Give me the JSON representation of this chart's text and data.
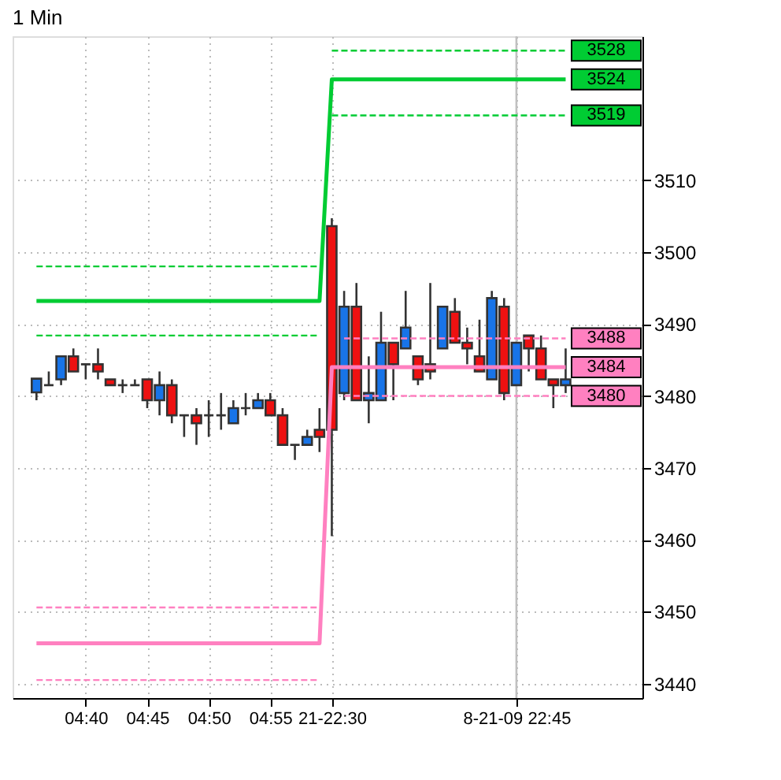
{
  "chart_data": {
    "type": "candlestick",
    "title": "1 Min",
    "categories": [
      null,
      null,
      null,
      null,
      "04:40",
      null,
      null,
      null,
      null,
      "04:45",
      null,
      null,
      null,
      null,
      "04:50",
      null,
      null,
      null,
      null,
      "04:55",
      null,
      null,
      null,
      null,
      "21-22:30",
      null,
      null,
      null,
      null,
      null,
      null,
      null,
      null,
      null,
      null,
      null,
      null,
      null,
      null,
      "8-21-09 22:45",
      null,
      null,
      null,
      null
    ],
    "ohlc": [
      [
        3480.5,
        3482.4,
        3479.4,
        3482.4
      ],
      [
        3481.5,
        3483.4,
        3481.5,
        3481.5
      ],
      [
        3482.3,
        3485.5,
        3481.5,
        3485.5
      ],
      [
        3485.5,
        3486.6,
        3483.4,
        3483.4
      ],
      [
        3484.4,
        3484.4,
        3482.3,
        3484.4
      ],
      [
        3484.4,
        3486.6,
        3482.3,
        3483.4
      ],
      [
        3482.3,
        3482.3,
        3481.5,
        3481.5
      ],
      [
        3481.5,
        3482.3,
        3480.4,
        3481.5
      ],
      [
        3481.5,
        3482.3,
        3481.5,
        3481.5
      ],
      [
        3482.3,
        3482.3,
        3478.3,
        3479.4
      ],
      [
        3479.4,
        3483.4,
        3477.3,
        3481.5
      ],
      [
        3481.5,
        3482.3,
        3476.2,
        3477.3
      ],
      [
        3477.3,
        3477.3,
        3474.3,
        3477.3
      ],
      [
        3477.3,
        3478.3,
        3473.2,
        3476.2
      ],
      [
        3477.3,
        3479.4,
        3474.3,
        3477.3
      ],
      [
        3477.3,
        3480.4,
        3475.3,
        3477.3
      ],
      [
        3476.2,
        3479.4,
        3476.2,
        3478.3
      ],
      [
        3478.3,
        3480.4,
        3477.3,
        3478.3
      ],
      [
        3478.3,
        3480.4,
        3478.3,
        3479.4
      ],
      [
        3479.4,
        3480.4,
        3477.3,
        3477.3
      ],
      [
        3477.3,
        3478.3,
        3473.2,
        3473.2
      ],
      [
        3473.2,
        3473.2,
        3471.1,
        3473.2
      ],
      [
        3473.2,
        3475.3,
        3473.2,
        3474.3
      ],
      [
        3475.3,
        3478.3,
        3472.2,
        3474.3
      ],
      [
        3503.6,
        3504.7,
        3460.5,
        3475.3
      ],
      [
        3480.4,
        3494.6,
        3479.4,
        3492.4
      ],
      [
        3492.4,
        3495.7,
        3479.4,
        3479.4
      ],
      [
        3479.4,
        3485.5,
        3476.2,
        3480.4
      ],
      [
        3479.4,
        3491.7,
        3479.4,
        3487.4
      ],
      [
        3487.4,
        3487.4,
        3479.4,
        3484.4
      ],
      [
        3486.6,
        3494.6,
        3486.6,
        3489.5
      ],
      [
        3485.5,
        3485.5,
        3481.5,
        3482.3
      ],
      [
        3484.4,
        3495.7,
        3482.3,
        3483.4
      ],
      [
        3486.6,
        3492.4,
        3486.6,
        3492.4
      ],
      [
        3491.7,
        3493.6,
        3487.4,
        3487.4
      ],
      [
        3487.4,
        3489.5,
        3484.4,
        3486.6
      ],
      [
        3485.5,
        3490.6,
        3483.4,
        3483.4
      ],
      [
        3482.3,
        3494.6,
        3482.3,
        3493.6
      ],
      [
        3492.4,
        3493.6,
        3479.4,
        3480.4
      ],
      [
        3481.5,
        3487.4,
        3481.5,
        3487.4
      ],
      [
        3488.4,
        3488.4,
        3483.4,
        3486.6
      ],
      [
        3486.6,
        3488.4,
        3482.3,
        3482.3
      ],
      [
        3482.3,
        3482.3,
        3478.3,
        3481.5
      ],
      [
        3481.5,
        3486.6,
        3480.4,
        3482.3
      ]
    ],
    "colors": [
      "#1874e8",
      "#333333",
      "#1874e8",
      "#ee1111",
      "#333333",
      "#ee1111",
      "#ee1111",
      "#333333",
      "#333333",
      "#ee1111",
      "#1874e8",
      "#ee1111",
      "#333333",
      "#ee1111",
      "#333333",
      "#333333",
      "#1874e8",
      "#333333",
      "#1874e8",
      "#ee1111",
      "#ee1111",
      "#333333",
      "#1874e8",
      "#ee1111",
      "#ee1111",
      "#1874e8",
      "#ee1111",
      "#1874e8",
      "#1874e8",
      "#ee1111",
      "#1874e8",
      "#ee1111",
      "#ee1111",
      "#1874e8",
      "#ee1111",
      "#ee1111",
      "#ee1111",
      "#1874e8",
      "#ee1111",
      "#1874e8",
      "#ee1111",
      "#ee1111",
      "#ee1111",
      "#1874e8"
    ],
    "series": [
      {
        "type": "line",
        "color": "#00cc33",
        "line_style": "solid",
        "values": [
          3493.2,
          3493.2,
          3493.2,
          3493.2,
          3493.2,
          3493.2,
          3493.2,
          3493.2,
          3493.2,
          3493.2,
          3493.2,
          3493.2,
          3493.2,
          3493.2,
          3493.2,
          3493.2,
          3493.2,
          3493.2,
          3493.2,
          3493.2,
          3493.2,
          3493.2,
          3493.2,
          3493.2,
          3524,
          3524,
          3524,
          3524,
          3524,
          3524,
          3524,
          3524,
          3524,
          3524,
          3524,
          3524,
          3524,
          3524,
          3524,
          3524,
          3524,
          3524,
          3524,
          3524
        ],
        "value_labels": [
          null,
          null,
          null,
          null,
          null,
          null,
          null,
          null,
          null,
          null,
          null,
          null,
          null,
          null,
          null,
          null,
          null,
          null,
          null,
          null,
          null,
          null,
          null,
          null,
          null,
          null,
          null,
          null,
          null,
          null,
          null,
          null,
          null,
          null,
          null,
          null,
          null,
          null,
          null,
          null,
          null,
          null,
          null,
          "3524"
        ]
      },
      {
        "type": "line",
        "color": "#00cc33",
        "line_style": "dashed",
        "values": [
          3498,
          3498,
          3498,
          3498,
          3498,
          3498,
          3498,
          3498,
          3498,
          3498,
          3498,
          3498,
          3498,
          3498,
          3498,
          3498,
          3498,
          3498,
          3498,
          3498,
          3498,
          3498,
          3498,
          3498,
          null,
          null,
          null,
          null,
          null,
          null,
          null,
          null,
          null,
          null,
          null,
          null,
          null,
          null,
          null,
          null,
          null,
          null,
          null,
          null
        ]
      },
      {
        "type": "line",
        "color": "#00cc33",
        "line_style": "dashed",
        "values": [
          3488.4,
          3488.4,
          3488.4,
          3488.4,
          3488.4,
          3488.4,
          3488.4,
          3488.4,
          3488.4,
          3488.4,
          3488.4,
          3488.4,
          3488.4,
          3488.4,
          3488.4,
          3488.4,
          3488.4,
          3488.4,
          3488.4,
          3488.4,
          3488.4,
          3488.4,
          3488.4,
          3488.4,
          null,
          null,
          null,
          null,
          null,
          null,
          null,
          null,
          null,
          null,
          null,
          null,
          null,
          null,
          null,
          null,
          null,
          null,
          null,
          null
        ]
      },
      {
        "type": "line",
        "color": "#00cc33",
        "line_style": "dashed",
        "values": [
          null,
          null,
          null,
          null,
          null,
          null,
          null,
          null,
          null,
          null,
          null,
          null,
          null,
          null,
          null,
          null,
          null,
          null,
          null,
          null,
          null,
          null,
          null,
          null,
          3528,
          3528,
          3528,
          3528,
          3528,
          3528,
          3528,
          3528,
          3528,
          3528,
          3528,
          3528,
          3528,
          3528,
          3528,
          3528,
          3528,
          3528,
          3528,
          3528
        ],
        "value_labels": [
          null,
          null,
          null,
          null,
          null,
          null,
          null,
          null,
          null,
          null,
          null,
          null,
          null,
          null,
          null,
          null,
          null,
          null,
          null,
          null,
          null,
          null,
          null,
          null,
          null,
          null,
          null,
          null,
          null,
          null,
          null,
          null,
          null,
          null,
          null,
          null,
          null,
          null,
          null,
          null,
          null,
          null,
          null,
          "3528"
        ]
      },
      {
        "type": "line",
        "color": "#00cc33",
        "line_style": "dashed",
        "values": [
          null,
          null,
          null,
          null,
          null,
          null,
          null,
          null,
          null,
          null,
          null,
          null,
          null,
          null,
          null,
          null,
          null,
          null,
          null,
          null,
          null,
          null,
          null,
          null,
          3519,
          3519,
          3519,
          3519,
          3519,
          3519,
          3519,
          3519,
          3519,
          3519,
          3519,
          3519,
          3519,
          3519,
          3519,
          3519,
          3519,
          3519,
          3519,
          3519
        ],
        "value_labels": [
          null,
          null,
          null,
          null,
          null,
          null,
          null,
          null,
          null,
          null,
          null,
          null,
          null,
          null,
          null,
          null,
          null,
          null,
          null,
          null,
          null,
          null,
          null,
          null,
          null,
          null,
          null,
          null,
          null,
          null,
          null,
          null,
          null,
          null,
          null,
          null,
          null,
          null,
          null,
          null,
          null,
          null,
          null,
          "3519"
        ]
      },
      {
        "type": "line",
        "color": "#ff80c0",
        "line_style": "solid",
        "values": [
          3445.6,
          3445.6,
          3445.6,
          3445.6,
          3445.6,
          3445.6,
          3445.6,
          3445.6,
          3445.6,
          3445.6,
          3445.6,
          3445.6,
          3445.6,
          3445.6,
          3445.6,
          3445.6,
          3445.6,
          3445.6,
          3445.6,
          3445.6,
          3445.6,
          3445.6,
          3445.6,
          3445.6,
          3484,
          3484,
          3484,
          3484,
          3484,
          3484,
          3484,
          3484,
          3484,
          3484,
          3484,
          3484,
          3484,
          3484,
          3484,
          3484,
          3484,
          3484,
          3484,
          3484
        ],
        "value_labels": [
          null,
          null,
          null,
          null,
          null,
          null,
          null,
          null,
          null,
          null,
          null,
          null,
          null,
          null,
          null,
          null,
          null,
          null,
          null,
          null,
          null,
          null,
          null,
          null,
          null,
          null,
          null,
          null,
          null,
          null,
          null,
          null,
          null,
          null,
          null,
          null,
          null,
          null,
          null,
          null,
          null,
          null,
          null,
          "3484"
        ]
      },
      {
        "type": "line",
        "color": "#ff80c0",
        "line_style": "dashed",
        "values": [
          3450.6,
          3450.6,
          3450.6,
          3450.6,
          3450.6,
          3450.6,
          3450.6,
          3450.6,
          3450.6,
          3450.6,
          3450.6,
          3450.6,
          3450.6,
          3450.6,
          3450.6,
          3450.6,
          3450.6,
          3450.6,
          3450.6,
          3450.6,
          3450.6,
          3450.6,
          3450.6,
          3450.6,
          null,
          null,
          null,
          null,
          null,
          null,
          null,
          null,
          null,
          null,
          null,
          null,
          null,
          null,
          null,
          null,
          null,
          null,
          null,
          null
        ]
      },
      {
        "type": "line",
        "color": "#ff80c0",
        "line_style": "dashed",
        "values": [
          3440.5,
          3440.5,
          3440.5,
          3440.5,
          3440.5,
          3440.5,
          3440.5,
          3440.5,
          3440.5,
          3440.5,
          3440.5,
          3440.5,
          3440.5,
          3440.5,
          3440.5,
          3440.5,
          3440.5,
          3440.5,
          3440.5,
          3440.5,
          3440.5,
          3440.5,
          3440.5,
          3440.5,
          null,
          null,
          null,
          null,
          null,
          null,
          null,
          null,
          null,
          null,
          null,
          null,
          null,
          null,
          null,
          null,
          null,
          null,
          null,
          null
        ]
      },
      {
        "type": "line",
        "color": "#ff80c0",
        "line_style": "dashed",
        "values": [
          null,
          null,
          null,
          null,
          null,
          null,
          null,
          null,
          null,
          null,
          null,
          null,
          null,
          null,
          null,
          null,
          null,
          null,
          null,
          null,
          null,
          null,
          null,
          null,
          null,
          3488,
          3488,
          3488,
          3488,
          3488,
          3488,
          3488,
          3488,
          3488,
          3488,
          3488,
          3488,
          3488,
          3488,
          3488,
          3488,
          3488,
          3488,
          3488
        ],
        "value_labels": [
          null,
          null,
          null,
          null,
          null,
          null,
          null,
          null,
          null,
          null,
          null,
          null,
          null,
          null,
          null,
          null,
          null,
          null,
          null,
          null,
          null,
          null,
          null,
          null,
          null,
          null,
          null,
          null,
          null,
          null,
          null,
          null,
          null,
          null,
          null,
          null,
          null,
          null,
          null,
          null,
          null,
          null,
          null,
          "3488"
        ]
      },
      {
        "type": "line",
        "color": "#ff80c0",
        "line_style": "dashed",
        "values": [
          null,
          null,
          null,
          null,
          null,
          null,
          null,
          null,
          null,
          null,
          null,
          null,
          null,
          null,
          null,
          null,
          null,
          null,
          null,
          null,
          null,
          null,
          null,
          null,
          null,
          3480,
          3480,
          3480,
          3480,
          3480,
          3480,
          3480,
          3480,
          3480,
          3480,
          3480,
          3480,
          3480,
          3480,
          3480,
          3480,
          3480,
          3480,
          3480
        ],
        "value_labels": [
          null,
          null,
          null,
          null,
          null,
          null,
          null,
          null,
          null,
          null,
          null,
          null,
          null,
          null,
          null,
          null,
          null,
          null,
          null,
          null,
          null,
          null,
          null,
          null,
          null,
          null,
          null,
          null,
          null,
          null,
          null,
          null,
          null,
          null,
          null,
          null,
          null,
          null,
          null,
          null,
          null,
          null,
          null,
          "3480"
        ]
      }
    ],
    "ref_lines": [
      {
        "axis": "x",
        "value": "8-21-09 22:45",
        "color": "#c0c0c0"
      }
    ],
    "ylim": [
      3438,
      3530
    ],
    "yticks": [
      3440,
      3450,
      3460,
      3470,
      3480,
      3490,
      3500,
      3510
    ],
    "grid": true
  }
}
